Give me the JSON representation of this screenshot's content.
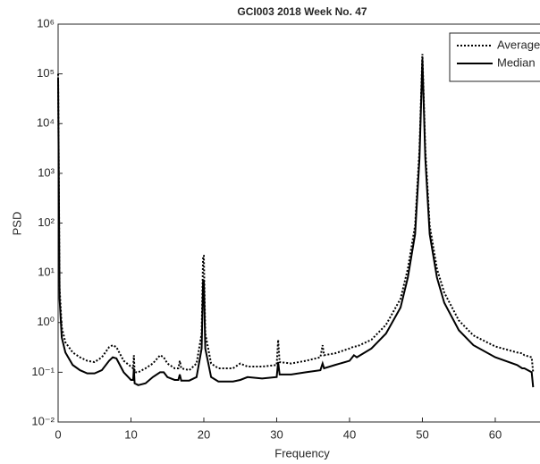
{
  "chart_data": {
    "type": "line",
    "title": "GCI003  2018   Week  No. 47",
    "x_label": "Frequency",
    "y_label": "PSD",
    "log_y": true,
    "legend": "northeast",
    "xlim": [
      0,
      67
    ],
    "xticks": [
      0,
      10,
      20,
      30,
      40,
      50,
      60
    ],
    "ylim": [
      0.01,
      1000000
    ],
    "yticks": [
      {
        "value": 0.01,
        "label": "10⁻²"
      },
      {
        "value": 0.1,
        "label": "10⁻¹"
      },
      {
        "value": 1,
        "label": "10⁰"
      },
      {
        "value": 10,
        "label": "10¹"
      },
      {
        "value": 100,
        "label": "10²"
      },
      {
        "value": 1000,
        "label": "10³"
      },
      {
        "value": 10000,
        "label": "10⁴"
      },
      {
        "value": 100000,
        "label": "10⁵"
      },
      {
        "value": 1000000,
        "label": "10⁶"
      }
    ],
    "x": [
      0,
      0.2,
      0.5,
      1,
      2,
      3,
      4,
      5,
      6,
      7,
      7.5,
      8,
      9,
      10,
      10.3,
      10.4,
      10.5,
      11,
      12,
      13,
      14,
      14.5,
      15,
      16,
      16.5,
      16.7,
      16.9,
      18,
      19,
      19.7,
      19.9,
      20,
      20.2,
      21,
      22,
      24,
      25,
      26,
      28,
      30,
      30.2,
      30.4,
      32,
      34,
      36,
      36.3,
      36.5,
      38,
      40,
      40.6,
      41,
      43,
      45,
      47,
      48,
      49,
      49.6,
      50,
      50.4,
      51,
      52,
      53,
      55,
      57,
      60,
      63,
      63.7,
      64,
      65,
      65.2
    ],
    "series": [
      {
        "name": "Average",
        "color": "#000000",
        "line_style": "dotted",
        "values": [
          100000,
          5,
          0.8,
          0.4,
          0.25,
          0.2,
          0.17,
          0.16,
          0.2,
          0.32,
          0.35,
          0.32,
          0.17,
          0.13,
          0.12,
          0.22,
          0.1,
          0.1,
          0.12,
          0.15,
          0.22,
          0.2,
          0.15,
          0.12,
          0.12,
          0.17,
          0.12,
          0.11,
          0.15,
          0.6,
          22,
          22,
          0.6,
          0.15,
          0.12,
          0.12,
          0.15,
          0.13,
          0.13,
          0.14,
          0.45,
          0.16,
          0.15,
          0.17,
          0.2,
          0.35,
          0.22,
          0.24,
          0.3,
          0.33,
          0.33,
          0.45,
          0.9,
          3,
          12,
          90,
          3000,
          250000,
          3000,
          90,
          12,
          4,
          1.1,
          0.55,
          0.33,
          0.25,
          0.24,
          0.22,
          0.2,
          0.1
        ]
      },
      {
        "name": "Median",
        "color": "#000000",
        "line_style": "solid",
        "values": [
          80000,
          3,
          0.5,
          0.25,
          0.14,
          0.11,
          0.095,
          0.095,
          0.11,
          0.17,
          0.2,
          0.19,
          0.1,
          0.07,
          0.07,
          0.12,
          0.06,
          0.055,
          0.06,
          0.08,
          0.1,
          0.1,
          0.08,
          0.07,
          0.07,
          0.09,
          0.068,
          0.068,
          0.08,
          0.3,
          7,
          7,
          0.3,
          0.08,
          0.065,
          0.065,
          0.07,
          0.08,
          0.075,
          0.08,
          0.16,
          0.09,
          0.09,
          0.1,
          0.11,
          0.15,
          0.12,
          0.14,
          0.17,
          0.22,
          0.2,
          0.3,
          0.6,
          2,
          8,
          60,
          2000,
          200000,
          2000,
          60,
          8,
          2.5,
          0.7,
          0.35,
          0.2,
          0.14,
          0.12,
          0.12,
          0.1,
          0.05
        ]
      }
    ]
  }
}
